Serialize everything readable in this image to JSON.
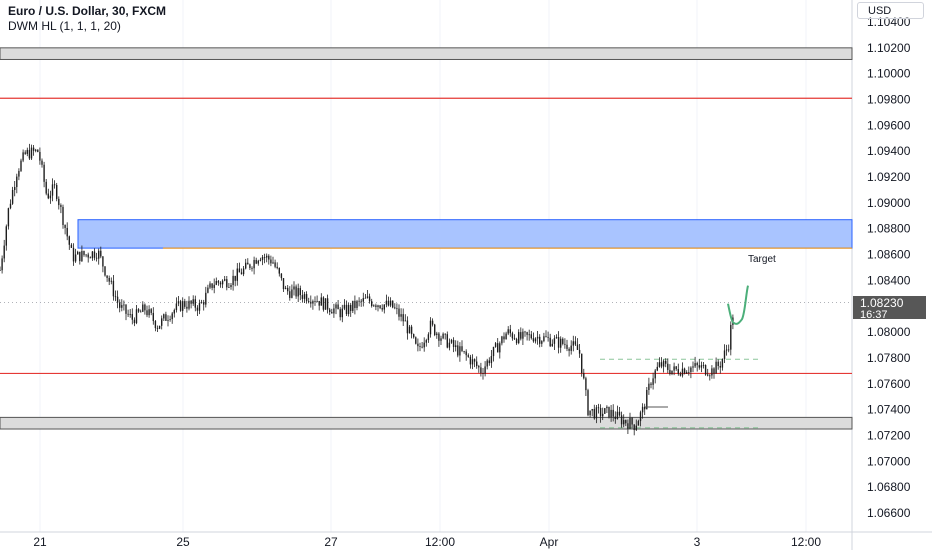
{
  "header": {
    "title": "Euro / U.S. Dollar, 30, FXCM",
    "indicator": "DWM HL (1, 1, 1, 20)"
  },
  "price_axis": {
    "currency": "USD",
    "current_price": "1.08230",
    "countdown": "16:37"
  },
  "colors": {
    "candles": "#1e1e1e",
    "red_line": "#e53935",
    "orange_line": "#ff9800",
    "zone_fill": "#a9c4ff",
    "zone_border": "#2962ff",
    "gray_zone": "#dcdcdc",
    "projection": "#4caf7a",
    "dashed": "#8bc59a"
  },
  "chart_data": {
    "type": "candlestick",
    "title": "Euro / U.S. Dollar, 30, FXCM",
    "ylim": [
      1.065,
      1.106
    ],
    "y_ticks": [
      "1.10400",
      "1.10200",
      "1.10000",
      "1.09800",
      "1.09600",
      "1.09400",
      "1.09200",
      "1.09000",
      "1.08800",
      "1.08600",
      "1.08400",
      "1.08200",
      "1.08000",
      "1.07800",
      "1.07600",
      "1.07400",
      "1.07200",
      "1.07000",
      "1.06800",
      "1.06600"
    ],
    "x_ticks": [
      "21",
      "25",
      "27",
      "12:00",
      "Apr",
      "3",
      "12:00"
    ],
    "close_path": [
      [
        0,
        1.0848
      ],
      [
        0.01,
        1.0895
      ],
      [
        0.02,
        1.0925
      ],
      [
        0.03,
        1.0938
      ],
      [
        0.045,
        1.094
      ],
      [
        0.055,
        1.0905
      ],
      [
        0.065,
        1.0912
      ],
      [
        0.075,
        1.0885
      ],
      [
        0.085,
        1.0858
      ],
      [
        0.1,
        1.086
      ],
      [
        0.115,
        1.0862
      ],
      [
        0.125,
        1.0845
      ],
      [
        0.14,
        1.082
      ],
      [
        0.155,
        1.081
      ],
      [
        0.17,
        1.0818
      ],
      [
        0.185,
        1.0805
      ],
      [
        0.2,
        1.0815
      ],
      [
        0.215,
        1.0822
      ],
      [
        0.235,
        1.082
      ],
      [
        0.25,
        1.0838
      ],
      [
        0.27,
        1.084
      ],
      [
        0.29,
        1.085
      ],
      [
        0.305,
        1.086
      ],
      [
        0.32,
        1.0855
      ],
      [
        0.335,
        1.0832
      ],
      [
        0.35,
        1.083
      ],
      [
        0.37,
        1.0826
      ],
      [
        0.385,
        1.082
      ],
      [
        0.4,
        1.0815
      ],
      [
        0.415,
        1.082
      ],
      [
        0.43,
        1.0825
      ],
      [
        0.445,
        1.0822
      ],
      [
        0.46,
        1.082
      ],
      [
        0.475,
        1.0808
      ],
      [
        0.49,
        1.0785
      ],
      [
        0.505,
        1.0805
      ],
      [
        0.52,
        1.0795
      ],
      [
        0.535,
        1.0787
      ],
      [
        0.55,
        1.078
      ],
      [
        0.565,
        1.077
      ],
      [
        0.58,
        1.0785
      ],
      [
        0.595,
        1.08
      ],
      [
        0.61,
        1.0795
      ],
      [
        0.625,
        1.0797
      ],
      [
        0.64,
        1.0795
      ],
      [
        0.655,
        1.0792
      ],
      [
        0.67,
        1.079
      ],
      [
        0.68,
        1.0785
      ],
      [
        0.69,
        1.074
      ],
      [
        0.7,
        1.0737
      ],
      [
        0.715,
        1.0738
      ],
      [
        0.73,
        1.0732
      ],
      [
        0.745,
        1.0728
      ],
      [
        0.755,
        1.074
      ],
      [
        0.765,
        1.0765
      ],
      [
        0.775,
        1.0775
      ],
      [
        0.79,
        1.077
      ],
      [
        0.805,
        1.0772
      ],
      [
        0.82,
        1.0773
      ],
      [
        0.835,
        1.077
      ],
      [
        0.845,
        1.0775
      ],
      [
        0.855,
        1.079
      ],
      [
        0.862,
        1.0822
      ]
    ],
    "red_levels": [
      1.0981,
      1.0768
    ],
    "orange_level": 1.0865,
    "gray_zones": [
      [
        1.102,
        1.1011
      ],
      [
        1.0734,
        1.0725
      ]
    ],
    "blue_zone": [
      1.0887,
      1.0865
    ],
    "dashed_levels": [
      1.0779,
      1.0726
    ],
    "projection": [
      1.0822,
      1.0807,
      1.081,
      1.0836
    ],
    "annotations": {
      "target_label": "Target"
    }
  }
}
